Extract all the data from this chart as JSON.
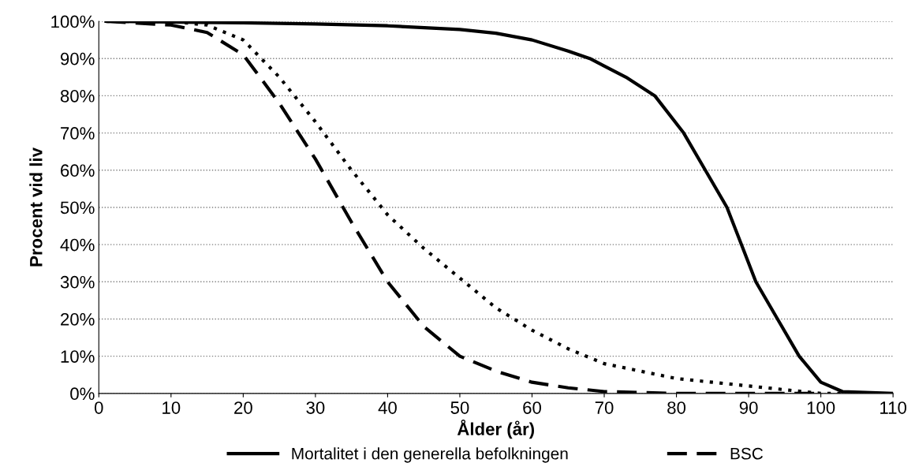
{
  "chart_data": {
    "type": "line",
    "xlabel": "Ålder (år)",
    "ylabel": "Procent vid liv",
    "xlim": [
      0,
      110
    ],
    "xticks": [
      0,
      10,
      20,
      30,
      40,
      50,
      60,
      70,
      80,
      90,
      100,
      110
    ],
    "ylim": [
      0,
      1
    ],
    "yticks": [
      {
        "value": 0,
        "label": "0%"
      },
      {
        "value": 0.1,
        "label": "10%"
      },
      {
        "value": 0.2,
        "label": "20%"
      },
      {
        "value": 0.3,
        "label": "30%"
      },
      {
        "value": 0.4,
        "label": "40%"
      },
      {
        "value": 0.5,
        "label": "50%"
      },
      {
        "value": 0.6,
        "label": "60%"
      },
      {
        "value": 0.7,
        "label": "70%"
      },
      {
        "value": 0.8,
        "label": "80%"
      },
      {
        "value": 0.9,
        "label": "90%"
      },
      {
        "value": 1,
        "label": "100%"
      }
    ],
    "grid": "y",
    "legend": "bottom",
    "marker": "none",
    "series": [
      {
        "name": "Mortalitet i den generella befolkningen",
        "color": "#000000",
        "line_style": "solid",
        "x": [
          1,
          10,
          20,
          30,
          40,
          50,
          55,
          60,
          65,
          68,
          73,
          77,
          81,
          84,
          87,
          89,
          91,
          94,
          97,
          100,
          103,
          110
        ],
        "values": [
          1,
          0.998,
          0.996,
          0.993,
          0.988,
          0.978,
          0.968,
          0.95,
          0.92,
          0.9,
          0.85,
          0.8,
          0.7,
          0.6,
          0.5,
          0.4,
          0.3,
          0.2,
          0.1,
          0.03,
          0.005,
          0
        ]
      },
      {
        "color": "#000000",
        "line_style": "dotted",
        "x": [
          1,
          10,
          15,
          20,
          25,
          30,
          35,
          40,
          45,
          50,
          55,
          60,
          65,
          70,
          75,
          80,
          85,
          90,
          95,
          100,
          103
        ],
        "values": [
          1,
          1,
          0.99,
          0.95,
          0.85,
          0.73,
          0.6,
          0.48,
          0.39,
          0.31,
          0.23,
          0.17,
          0.12,
          0.08,
          0.06,
          0.04,
          0.03,
          0.02,
          0.01,
          0,
          0
        ]
      },
      {
        "name": "BSC",
        "color": "#000000",
        "line_style": "dashed",
        "x": [
          1,
          10,
          15,
          20,
          25,
          30,
          35,
          40,
          45,
          50,
          55,
          60,
          65,
          70,
          80,
          100
        ],
        "values": [
          1,
          0.99,
          0.97,
          0.91,
          0.78,
          0.63,
          0.46,
          0.3,
          0.18,
          0.1,
          0.06,
          0.03,
          0.015,
          0.005,
          0,
          0
        ]
      }
    ]
  }
}
